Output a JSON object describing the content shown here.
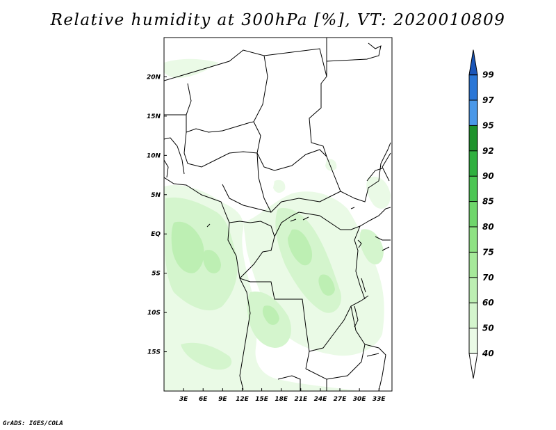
{
  "title": "Relative humidity at 300hPa [%], VT: 2020010809",
  "credit": "GrADS: IGES/COLA",
  "map": {
    "lon_range": [
      0,
      35
    ],
    "lat_range": [
      -20,
      25
    ],
    "lat_ticks": [
      {
        "value": 20,
        "label": "20N"
      },
      {
        "value": 15,
        "label": "15N"
      },
      {
        "value": 10,
        "label": "10N"
      },
      {
        "value": 5,
        "label": "5N"
      },
      {
        "value": 0,
        "label": "EQ"
      },
      {
        "value": -5,
        "label": "5S"
      },
      {
        "value": -10,
        "label": "10S"
      },
      {
        "value": -15,
        "label": "15S"
      }
    ],
    "lon_ticks": [
      {
        "value": 3,
        "label": "3E"
      },
      {
        "value": 6,
        "label": "6E"
      },
      {
        "value": 9,
        "label": "9E"
      },
      {
        "value": 12,
        "label": "12E"
      },
      {
        "value": 15,
        "label": "15E"
      },
      {
        "value": 18,
        "label": "18E"
      },
      {
        "value": 21,
        "label": "21E"
      },
      {
        "value": 24,
        "label": "24E"
      },
      {
        "value": 27,
        "label": "27E"
      },
      {
        "value": 30,
        "label": "30E"
      },
      {
        "value": 33,
        "label": "33E"
      }
    ]
  },
  "colorbar": {
    "levels": [
      "40",
      "50",
      "60",
      "70",
      "75",
      "80",
      "85",
      "90",
      "92",
      "95",
      "97",
      "99"
    ],
    "colors": [
      "#ffffff",
      "#eafae6",
      "#d4f5cd",
      "#bdefb3",
      "#a6e99a",
      "#8ee283",
      "#6fd66b",
      "#4cc654",
      "#2fb03f",
      "#1e922c",
      "#4a98e8",
      "#2a76d6",
      "#1a55b8"
    ]
  },
  "colors": {
    "country_border": "#000000",
    "field_light": "#eafae6",
    "field_mid": "#d4f5cd",
    "field_dark": "#bdefb3"
  }
}
